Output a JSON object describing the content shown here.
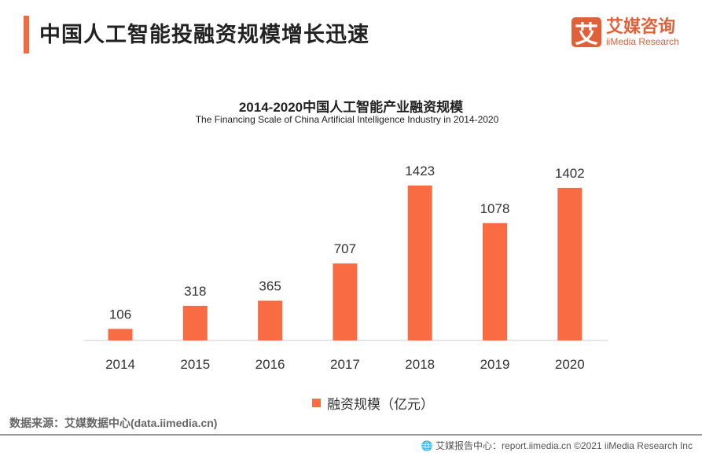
{
  "header": {
    "title": "中国人工智能投融资规模增长迅速"
  },
  "logo": {
    "mark": "艾",
    "cn": "艾媒咨询",
    "en": "iiMedia Research"
  },
  "chart_data": {
    "type": "bar",
    "title": "2014-2020中国人工智能产业融资规模",
    "subtitle": "The Financing Scale of China Artificial Intelligence Industry  in 2014-2020",
    "categories": [
      "2014",
      "2015",
      "2016",
      "2017",
      "2018",
      "2019",
      "2020"
    ],
    "series": [
      {
        "name": "融资规模（亿元）",
        "values": [
          106,
          318,
          365,
          707,
          1423,
          1078,
          1402
        ]
      }
    ],
    "ylim": [
      0,
      1423
    ],
    "color": "#f96c43",
    "legend": "bottom"
  },
  "source": "数据来源：艾媒数据中心(data.iimedia.cn)",
  "footer": "🌐 艾媒报告中心：report.iimedia.cn   ©2021  iiMedia Research  Inc"
}
